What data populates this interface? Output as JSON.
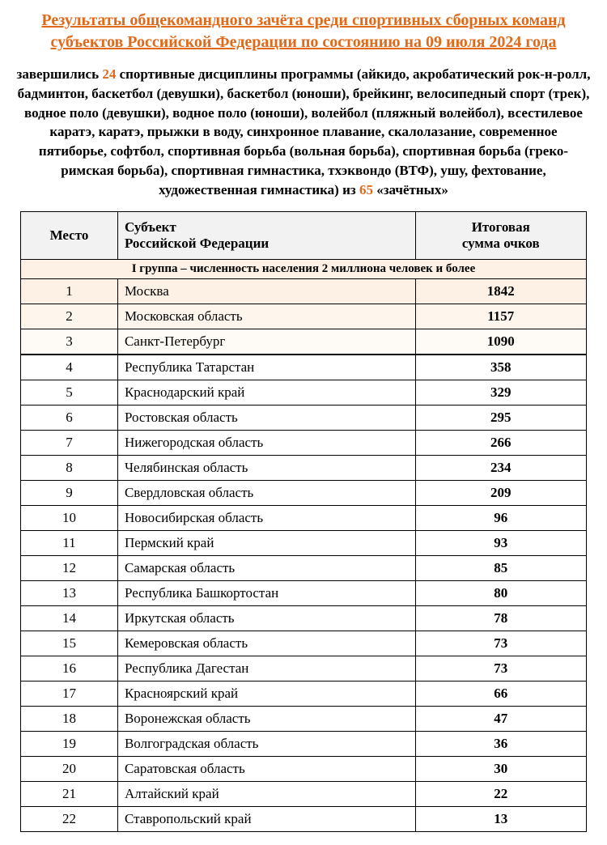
{
  "colors": {
    "accent": "#e06a1a",
    "text": "#000000",
    "highlight_rows": [
      "#fdf0e4",
      "#fef5ed",
      "#fefaf6"
    ],
    "header_bg": "#f2f2f2",
    "group_header_bg": "#fdf0e4"
  },
  "title": "Результаты общекомандного зачёта среди спортивных сборных команд субъектов Российской Федерации по состоянию на 09 июля 2024 года",
  "subtitle_parts": {
    "p1": "завершились ",
    "count_disciplines": "24",
    "p2": " спортивные дисциплины программы (айкидо, акробатический рок-н-ролл, бадминтон, баскетбол (девушки), баскетбол (юноши), брейкинг, велосипедный спорт (трек), водное поло (девушки), водное поло (юноши), волейбол (пляжный волейбол), всестилевое каратэ, каратэ, прыжки в воду, синхронное плавание, скалолазание, современное пятиборье, софтбол, спортивная борьба (вольная борьба), спортивная борьба (греко-римская борьба), спортивная гимнастика, тхэквондо (ВТФ), ушу, фехтование, художественная гимнастика) из ",
    "count_total": "65",
    "p3": " «зачётных»"
  },
  "table": {
    "headers": {
      "place": "Место",
      "subject_line1": "Субъект",
      "subject_line2": "Российской Федерации",
      "score_line1": "Итоговая",
      "score_line2": "сумма очков"
    },
    "group_header": "I группа – численность населения 2 миллиона человек и более",
    "rows": [
      {
        "place": "1",
        "subject": "Москва",
        "score": "1842",
        "highlight": 0
      },
      {
        "place": "2",
        "subject": "Московская область",
        "score": "1157",
        "highlight": 1
      },
      {
        "place": "3",
        "subject": "Санкт-Петербург",
        "score": "1090",
        "highlight": 2,
        "thick_bottom": true
      },
      {
        "place": "4",
        "subject": "Республика Татарстан",
        "score": "358"
      },
      {
        "place": "5",
        "subject": "Краснодарский край",
        "score": "329"
      },
      {
        "place": "6",
        "subject": "Ростовская область",
        "score": "295"
      },
      {
        "place": "7",
        "subject": "Нижегородская область",
        "score": "266"
      },
      {
        "place": "8",
        "subject": "Челябинская область",
        "score": "234"
      },
      {
        "place": "9",
        "subject": "Свердловская область",
        "score": "209"
      },
      {
        "place": "10",
        "subject": "Новосибирская область",
        "score": "96"
      },
      {
        "place": "11",
        "subject": "Пермский край",
        "score": "93"
      },
      {
        "place": "12",
        "subject": "Самарская область",
        "score": "85"
      },
      {
        "place": "13",
        "subject": "Республика Башкортостан",
        "score": "80"
      },
      {
        "place": "14",
        "subject": "Иркутская область",
        "score": "78"
      },
      {
        "place": "15",
        "subject": "Кемеровская область",
        "score": "73"
      },
      {
        "place": "16",
        "subject": "Республика Дагестан",
        "score": "73"
      },
      {
        "place": "17",
        "subject": "Красноярский край",
        "score": "66"
      },
      {
        "place": "18",
        "subject": "Воронежская область",
        "score": "47"
      },
      {
        "place": "19",
        "subject": "Волгоградская область",
        "score": "36"
      },
      {
        "place": "20",
        "subject": "Саратовская область",
        "score": "30"
      },
      {
        "place": "21",
        "subject": "Алтайский край",
        "score": "22"
      },
      {
        "place": "22",
        "subject": "Ставропольский край",
        "score": "13"
      }
    ]
  }
}
